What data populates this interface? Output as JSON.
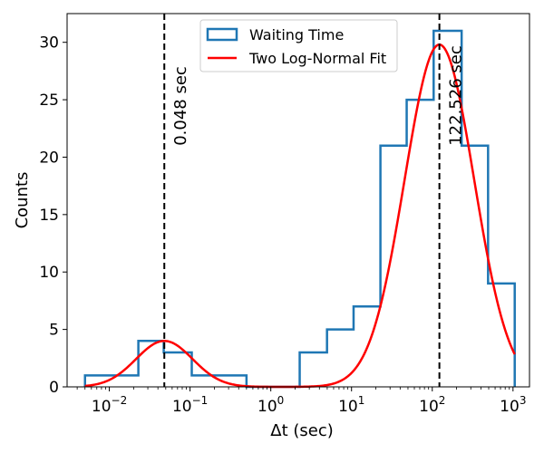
{
  "chart_data": {
    "type": "histogram",
    "title": "",
    "xlabel": "Δt (sec)",
    "ylabel": "Counts",
    "xscale": "log",
    "xlim": [
      0.003,
      1600
    ],
    "ylim": [
      0,
      32.5
    ],
    "x_ticks": [
      {
        "value": 0.01,
        "base": "10",
        "exp": "−2"
      },
      {
        "value": 0.1,
        "base": "10",
        "exp": "−1"
      },
      {
        "value": 1,
        "base": "10",
        "exp": "0"
      },
      {
        "value": 10,
        "base": "10",
        "exp": "1"
      },
      {
        "value": 100,
        "base": "10",
        "exp": "2"
      },
      {
        "value": 1000,
        "base": "10",
        "exp": "3"
      }
    ],
    "y_ticks": [
      {
        "value": 0,
        "label": "0"
      },
      {
        "value": 5,
        "label": "5"
      },
      {
        "value": 10,
        "label": "10"
      },
      {
        "value": 15,
        "label": "15"
      },
      {
        "value": 20,
        "label": "20"
      },
      {
        "value": 25,
        "label": "25"
      },
      {
        "value": 30,
        "label": "30"
      }
    ],
    "series": [
      {
        "name": "Waiting Time",
        "style": "step",
        "color": "#1f77b4",
        "bin_edges": [
          0.005,
          0.0229,
          0.0472,
          0.105,
          0.5,
          2.28,
          4.97,
          10.6,
          22.8,
          48.2,
          104,
          231,
          491,
          1050
        ],
        "counts": [
          1,
          4,
          3,
          1,
          0,
          3,
          5,
          7,
          21,
          25,
          31,
          21,
          9
        ]
      },
      {
        "name": "Two Log-Normal Fit",
        "style": "line",
        "color": "#ff0000",
        "components": [
          {
            "peak_x": 0.048,
            "amplitude": 4.0,
            "sigma_log10": 0.35
          },
          {
            "peak_x": 122.526,
            "amplitude": 29.8,
            "sigma_log10": 0.43
          }
        ],
        "x_range": [
          0.005,
          1050
        ]
      }
    ],
    "vlines": [
      {
        "x": 0.048,
        "label": "0.048 sec",
        "style": "dashed",
        "color": "#000000"
      },
      {
        "x": 122.526,
        "label": "122.526 sec",
        "style": "dashed",
        "color": "#000000"
      }
    ],
    "legend": {
      "position": "top-center",
      "entries": [
        "Waiting Time",
        "Two Log-Normal Fit"
      ]
    }
  }
}
